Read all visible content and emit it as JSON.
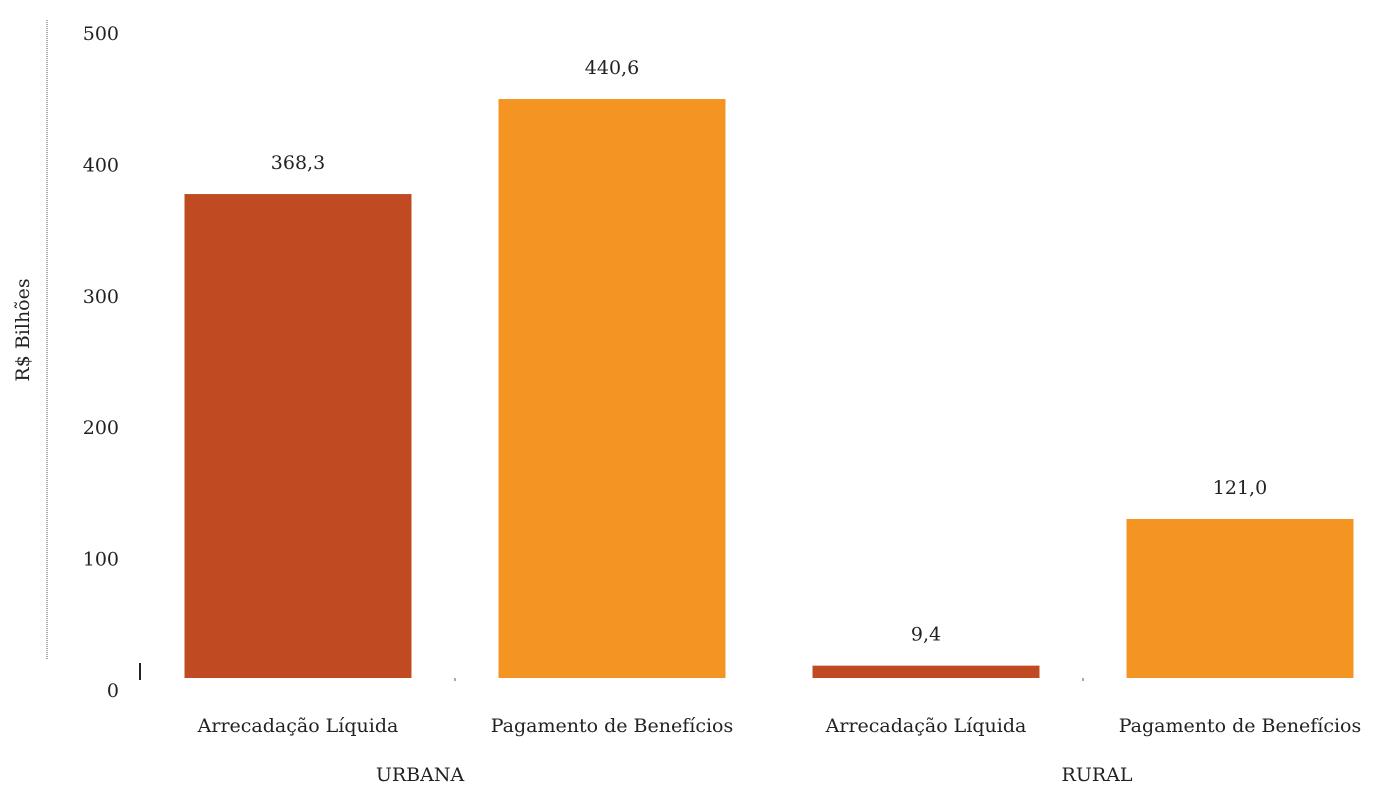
{
  "chart_data": {
    "type": "bar",
    "y_label": "R$ Bilhões",
    "categories": [
      "Arrecadação Líquida",
      "Pagamento de Benefícios",
      "Arrecadação Líquida",
      "Pagamento de Benefícios"
    ],
    "group_labels": [
      "URBANA",
      "RURAL"
    ],
    "values": [
      368.3,
      440.6,
      9.4,
      121.0
    ],
    "value_labels": [
      "368,3",
      "440,6",
      "9,4",
      "121,0"
    ],
    "colors": [
      "#c04b23",
      "#f39423",
      "#c04b23",
      "#f39423"
    ],
    "ylim": [
      0,
      500
    ],
    "yticks": [
      0,
      100,
      200,
      300,
      400,
      500
    ],
    "grid": false
  }
}
